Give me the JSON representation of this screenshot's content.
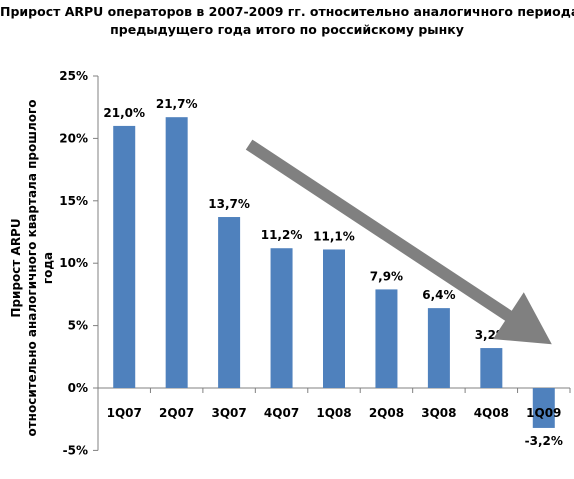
{
  "chart_data": {
    "type": "bar",
    "title_lines": [
      "Прирост ARPU операторов в 2007-2009 гг. относительно аналогичного периода",
      "предыдущего года итого по российскому рынку"
    ],
    "ylabel_lines": [
      "Прирост ARPU",
      "относительно аналогичного квартала прошлого",
      "года"
    ],
    "xlabel": "",
    "categories": [
      "1Q07",
      "2Q07",
      "3Q07",
      "4Q07",
      "1Q08",
      "2Q08",
      "3Q08",
      "4Q08",
      "1Q09"
    ],
    "values": [
      21.0,
      21.7,
      13.7,
      11.2,
      11.1,
      7.9,
      6.4,
      3.2,
      -3.2
    ],
    "data_labels": [
      "21,0%",
      "21,7%",
      "13,7%",
      "11,2%",
      "11,1%",
      "7,9%",
      "6,4%",
      "3,2%",
      "-3,2%"
    ],
    "ylim": [
      -5,
      25
    ],
    "yticks": [
      25,
      20,
      15,
      10,
      5,
      0,
      -5
    ],
    "ytick_labels": [
      "25%",
      "20%",
      "15%",
      "10%",
      "5%",
      "0%",
      "-5%"
    ],
    "grid": false,
    "legend": "none",
    "colors": {
      "bar": "#4F81BD",
      "arrow": "#808080",
      "axis": "#808080"
    },
    "annotations": [
      {
        "type": "arrow",
        "from": {
          "category": "3Q07",
          "value": 19.5
        },
        "to": {
          "category": "1Q09",
          "value": 3.5
        }
      }
    ]
  }
}
